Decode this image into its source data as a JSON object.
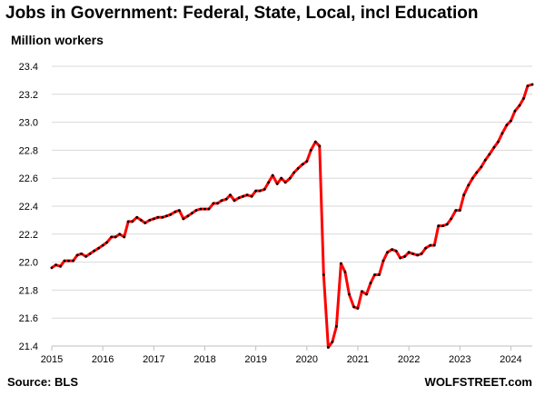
{
  "title": "Jobs in Government: Federal, State, Local, incl Education",
  "subtitle": "Million workers",
  "source": "Source: BLS",
  "credit": "WOLFSTREET.com",
  "chart_data": {
    "type": "line",
    "title": "Jobs in Government: Federal, State, Local, incl Education",
    "ylabel": "Million workers",
    "xlabel": "",
    "x_ticks": [
      "2015",
      "2016",
      "2017",
      "2018",
      "2019",
      "2020",
      "2021",
      "2022",
      "2023",
      "2024"
    ],
    "y_ticks": [
      "21.4",
      "21.6",
      "21.8",
      "22.0",
      "22.2",
      "22.4",
      "22.6",
      "22.8",
      "23.0",
      "23.2",
      "23.4"
    ],
    "ylim": [
      21.4,
      23.4
    ],
    "xlim": [
      2015.0,
      2024.42
    ],
    "grid": "horizontal",
    "legend": "none",
    "line_color": "#ff0000",
    "marker_color": "#000000",
    "series": [
      {
        "x": [
          2015.0,
          2015.08,
          2015.17,
          2015.25,
          2015.33,
          2015.42,
          2015.5,
          2015.58,
          2015.67,
          2015.75,
          2015.83,
          2015.92,
          2016.0,
          2016.08,
          2016.17,
          2016.25,
          2016.33,
          2016.42,
          2016.5,
          2016.58,
          2016.67,
          2016.75,
          2016.83,
          2016.92,
          2017.0,
          2017.08,
          2017.17,
          2017.25,
          2017.33,
          2017.42,
          2017.5,
          2017.58,
          2017.67,
          2017.75,
          2017.83,
          2017.92,
          2018.0,
          2018.08,
          2018.17,
          2018.25,
          2018.33,
          2018.42,
          2018.5,
          2018.58,
          2018.67,
          2018.75,
          2018.83,
          2018.92,
          2019.0,
          2019.08,
          2019.17,
          2019.25,
          2019.33,
          2019.42,
          2019.5,
          2019.58,
          2019.67,
          2019.75,
          2019.83,
          2019.92,
          2020.0,
          2020.08,
          2020.17,
          2020.25,
          2020.33,
          2020.42,
          2020.5,
          2020.58,
          2020.67,
          2020.75,
          2020.83,
          2020.92,
          2021.0,
          2021.08,
          2021.17,
          2021.25,
          2021.33,
          2021.42,
          2021.5,
          2021.58,
          2021.67,
          2021.75,
          2021.83,
          2021.92,
          2022.0,
          2022.08,
          2022.17,
          2022.25,
          2022.33,
          2022.42,
          2022.5,
          2022.58,
          2022.67,
          2022.75,
          2022.83,
          2022.92,
          2023.0,
          2023.08,
          2023.17,
          2023.25,
          2023.33,
          2023.42,
          2023.5,
          2023.58,
          2023.67,
          2023.75,
          2023.83,
          2023.92,
          2024.0,
          2024.08,
          2024.17,
          2024.25,
          2024.33,
          2024.42
        ],
        "values": [
          21.96,
          21.98,
          21.97,
          22.01,
          22.01,
          22.01,
          22.05,
          22.06,
          22.04,
          22.06,
          22.08,
          22.1,
          22.12,
          22.14,
          22.18,
          22.18,
          22.2,
          22.18,
          22.29,
          22.29,
          22.32,
          22.3,
          22.28,
          22.3,
          22.31,
          22.32,
          22.32,
          22.33,
          22.34,
          22.36,
          22.37,
          22.31,
          22.33,
          22.35,
          22.37,
          22.38,
          22.38,
          22.38,
          22.42,
          22.42,
          22.44,
          22.45,
          22.48,
          22.44,
          22.46,
          22.47,
          22.48,
          22.47,
          22.51,
          22.51,
          22.52,
          22.57,
          22.62,
          22.56,
          22.6,
          22.57,
          22.6,
          22.64,
          22.67,
          22.7,
          22.72,
          22.8,
          22.86,
          22.83,
          21.91,
          21.39,
          21.43,
          21.54,
          21.99,
          21.93,
          21.77,
          21.68,
          21.67,
          21.79,
          21.77,
          21.85,
          21.91,
          21.91,
          22.01,
          22.07,
          22.09,
          22.08,
          22.03,
          22.04,
          22.07,
          22.06,
          22.05,
          22.06,
          22.1,
          22.12,
          22.12,
          22.26,
          22.26,
          22.27,
          22.31,
          22.37,
          22.37,
          22.48,
          22.55,
          22.6,
          22.64,
          22.68,
          22.73,
          22.77,
          22.82,
          22.86,
          22.92,
          22.98,
          23.01,
          23.08,
          23.12,
          23.17,
          23.26,
          23.27
        ]
      }
    ]
  }
}
